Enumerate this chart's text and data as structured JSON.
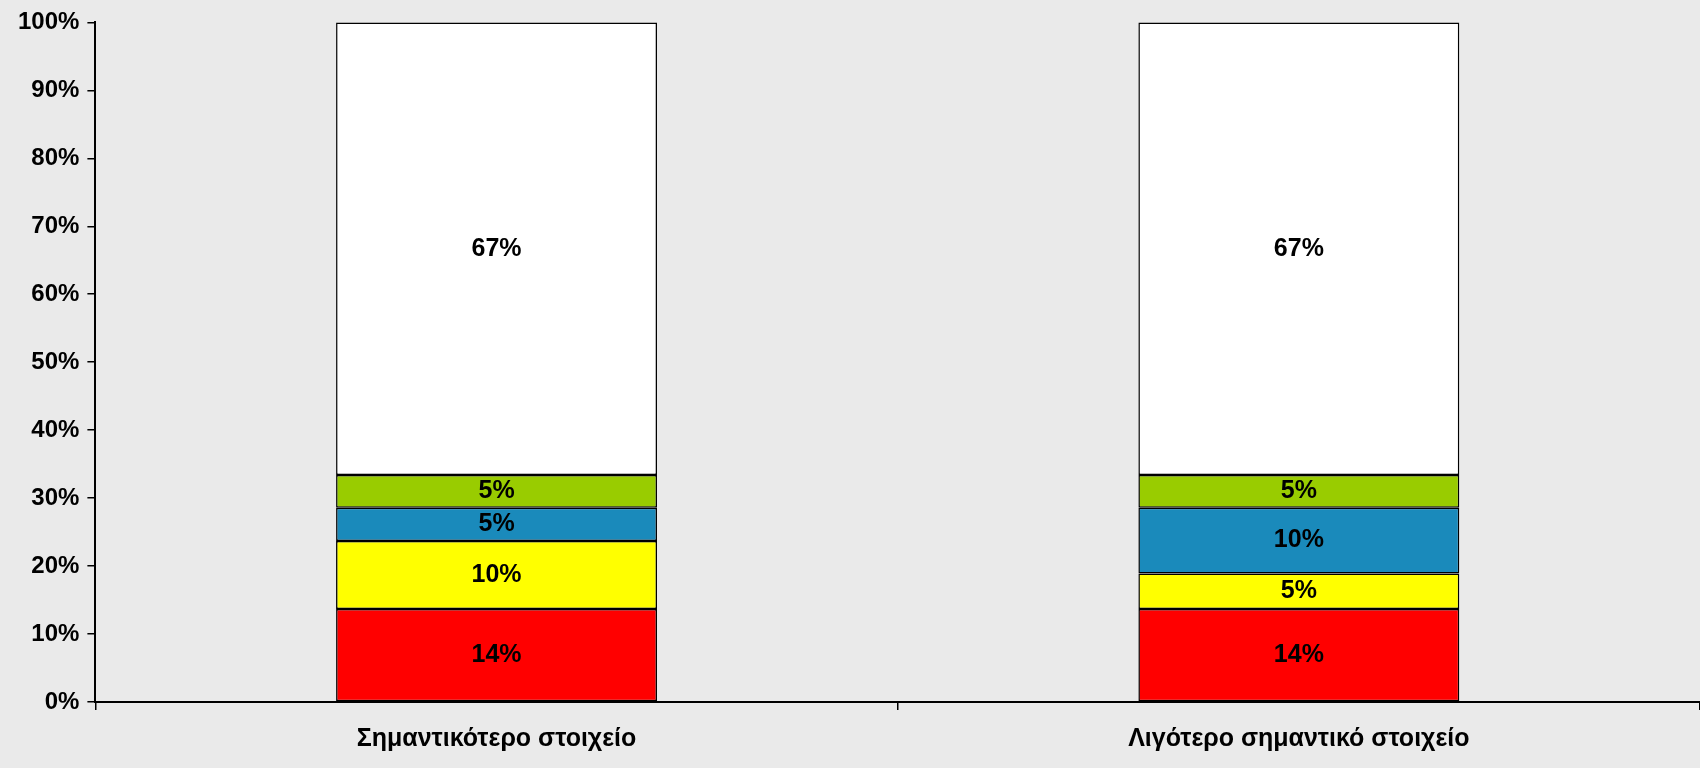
{
  "chart_data": {
    "type": "bar",
    "stacked": true,
    "categories": [
      "Σημαντικότερο στοιχείο",
      "Λιγότερο σημαντικό στοιχείο"
    ],
    "series": [
      {
        "color": "#ff0000",
        "values": [
          13.7,
          13.7
        ],
        "value_labels": [
          "14%",
          "14%"
        ]
      },
      {
        "color": "#ffff00",
        "values": [
          10.0,
          5.2
        ],
        "value_labels": [
          "10%",
          "5%"
        ]
      },
      {
        "color": "#1a8abb",
        "values": [
          4.9,
          9.7
        ],
        "value_labels": [
          "5%",
          "10%"
        ]
      },
      {
        "color": "#99cc00",
        "values": [
          4.8,
          4.8
        ],
        "value_labels": [
          "5%",
          "5%"
        ]
      },
      {
        "color": "#ffffff",
        "values": [
          66.6,
          66.6
        ],
        "value_labels": [
          "67%",
          "67%"
        ]
      }
    ],
    "ylim": [
      0,
      100
    ],
    "yticks": [
      {
        "value": 0,
        "label": "0%"
      },
      {
        "value": 10,
        "label": "10%"
      },
      {
        "value": 20,
        "label": "20%"
      },
      {
        "value": 30,
        "label": "30%"
      },
      {
        "value": 40,
        "label": "40%"
      },
      {
        "value": 50,
        "label": "50%"
      },
      {
        "value": 60,
        "label": "60%"
      },
      {
        "value": 70,
        "label": "70%"
      },
      {
        "value": 80,
        "label": "80%"
      },
      {
        "value": 90,
        "label": "90%"
      },
      {
        "value": 100,
        "label": "100%"
      }
    ],
    "grid": false,
    "legend": false
  }
}
